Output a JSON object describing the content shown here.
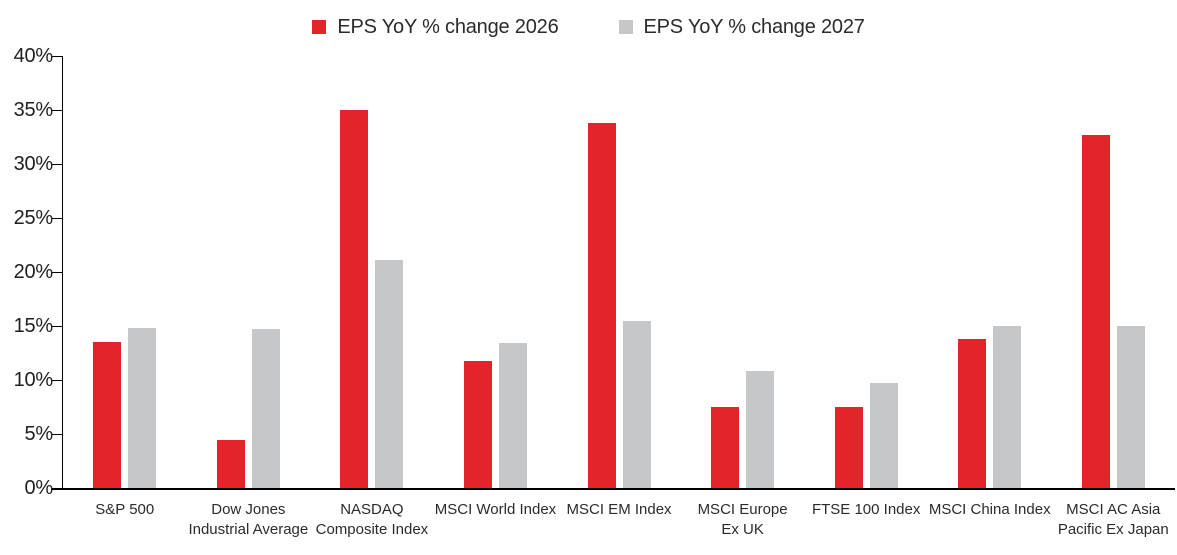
{
  "legend": {
    "items": [
      {
        "label": "EPS YoY % change 2026",
        "color": "#e3242b"
      },
      {
        "label": "EPS YoY % change 2027",
        "color": "#c6c7c9"
      }
    ]
  },
  "chart_data": {
    "type": "bar",
    "title": "",
    "categories": [
      "S&P 500",
      "Dow Jones\nIndustrial Average",
      "NASDAQ\nComposite Index",
      "MSCI World Index",
      "MSCI EM Index",
      "MSCI Europe\nEx UK",
      "FTSE 100 Index",
      "MSCI China Index",
      "MSCI AC Asia\nPacific Ex Japan"
    ],
    "series": [
      {
        "name": "EPS YoY % change 2026",
        "color": "#e3242b",
        "values": [
          13.5,
          4.4,
          35.0,
          11.8,
          33.8,
          7.5,
          7.5,
          13.8,
          32.7
        ]
      },
      {
        "name": "EPS YoY % change 2027",
        "color": "#c6c7c9",
        "values": [
          14.8,
          14.7,
          21.1,
          13.4,
          15.5,
          10.8,
          9.7,
          15.0,
          15.0
        ]
      }
    ],
    "xlabel": "",
    "ylabel": "",
    "ylim": [
      0,
      40
    ],
    "yticks": [
      "0%",
      "5%",
      "10%",
      "15%",
      "20%",
      "25%",
      "30%",
      "35%",
      "40%"
    ],
    "grid": false,
    "legend_position": "top"
  },
  "colors": {
    "axis": "#000000",
    "tick_label": "#1f1f1f",
    "category_label": "#2b2b2b",
    "background": "#ffffff"
  }
}
